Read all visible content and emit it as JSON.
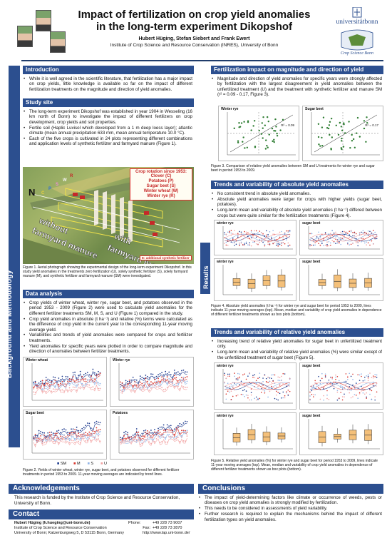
{
  "header": {
    "title_line1": "Impact of fertilization on crop yield anomalies",
    "title_line2": "in the long-term experiment Dikopshof",
    "authors": "Hubert Hüging, Stefan Siebert and Frank Ewert",
    "institute": "Institute of Crop Science and Resource Conservation (INRES), University of Bonn",
    "logo_text": "universitätbonn",
    "logo_sub": "Crop Science Bonn"
  },
  "side_label": "Background and Methodology",
  "results_label": "Results",
  "introduction": {
    "heading": "Introduction",
    "bullets": [
      "While it is well agreed in the scientific literature, that fertilization has a major impact on crop yields, little knowledge is available so far on the impact of different fertilization treatments on the magnitude and direction of yield anomalies."
    ]
  },
  "study_site": {
    "heading": "Study site",
    "bullets": [
      "The long-term experiment Dikopshof was established in year 1904 in Wesseling (16 km north of Bonn) to investigate the impact of different fertilizers on crop development, crop yields and soil properties.",
      "Fertile soil (Haplic Luvisol which developed from a 1 m deep loess layer); atlantic climate (mean annual precipitation 633 mm, mean annual temperature 10.0 °C).",
      "Each of the five crops is cultivated in 24 plots representing different combinations and application levels of synthetic fertilizer and farmyard manure (Figure 1)."
    ],
    "rotation_title": "Crop rotation since 1953:",
    "rotation": [
      "Clover (C)",
      "Potatoes (P)",
      "Sugar beet (S)",
      "Winter wheat (W)",
      "Winter rye (R)"
    ],
    "map_labels": {
      "north": "N",
      "without_1": "without",
      "without_2": "farmyard manure",
      "with_1": "with",
      "with_2": "farmyard manure",
      "legend": "E: additional synthetic fertilizer",
      "strip_letters": [
        "R",
        "W",
        "S",
        "P",
        "C"
      ]
    },
    "figure1_caption": "Figure 1. Aerial photograph showing the experimental design of the long-term experiment Dikopshof. In this study yield anomalies in the treatments zero fertilization (U), solely synthetic fertilizer (S), solely farmyard manure (M), and synthetic fertilizer and farmyard manure (SM) were investigated."
  },
  "data_analysis": {
    "heading": "Data analysis",
    "bullets": [
      "Crop yields of winter wheat, winter rye, sugar beet, and potatoes observed in the period 1953 - 2009 (Figure 2) were used to calculate yield anomalies for the different fertilizer treatments SM, M, S, and U (Figure 1) compared in the study.",
      "Crop yield anomalies in absolute (t ha⁻¹) and relative (%) terms were calculated as the difference of crop yield in the current year to the corresponding 11-year moving average yield.",
      "Variabilities and trends of yield anomalies were compared for crops and fertilizer treatments.",
      "Yield anomalies for specific years were plotted in order to compare magnitude and direction of anomalies between fertilizer treatments."
    ],
    "panels": [
      "Winter wheat",
      "Winter rye",
      "Sugar beet",
      "Potatoes"
    ],
    "legend": [
      "SM",
      "M",
      "S",
      "U"
    ],
    "figure2_caption": "Figure 2. Yields of winter wheat, winter rye, sugar beet, and potatoes observed for different fertilizer treatments in period 1953 to 2009. 11-year moving averages are indicated by trend lines."
  },
  "fert_impact": {
    "heading": "Fertilization impact on magnitude and direction of yield anomalies",
    "bullets": [
      "Magnitude and direction of yield anomalies for specific years were strongly affected by fertilization with the largest disagreement in yield anomalies between the unfertilized treatment (U) and the treatment with synthetic fertilizer and manure SM (r² = 0.09 - 0.17, Figure 3)."
    ],
    "panels": [
      "Winter rye",
      "Sugar beet"
    ],
    "r2": [
      "R² = 0.09",
      "R² = 0.17"
    ],
    "figure3_caption": "Figure 3. Comparison of relative yield anomalies between SM and U treatments for winter rye and sugar beet in period 1953 to 2009."
  },
  "abs_trends": {
    "heading": "Trends and variability of absolute yield anomalies",
    "bullets": [
      "No consistent trend in absolute yield anomalies.",
      "Absolute yield anomalies were larger for crops with higher yields (sugar beet, potatoes).",
      "Long-term mean and variability of absolute yield anomalies (t ha⁻¹) differed between crops but were quite similar for the fertilization treatments (Figure 4)."
    ],
    "panels": [
      "winter rye",
      "sugar beet",
      "winter rye",
      "sugar beet"
    ],
    "figure4_caption": "Figure 4. Absolute yield anomalies (t ha⁻¹) for winter rye and sugar beet for period 1953 to 2009, lines indicate 11-year moving averages (top). Mean, median and variability of crop yield anomalies in dependence of different fertilizer treatments shown as box plots (bottom)."
  },
  "rel_trends": {
    "heading": "Trends and variability of relative yield anomalies",
    "bullets": [
      "Increasing trend of relative yield anomalies for sugar beet in unfertilized treatment only.",
      "Long-term mean and variability of relative yield anomalies (%) were similar except of the unfertilized treatment of sugar beet (Figure 5)."
    ],
    "panels": [
      "winter rye",
      "sugar beet",
      "winter rye",
      "sugar beet"
    ],
    "figure5_caption": "Figure 5. Relative yield anomalies (%) for winter rye and sugar beet for period 1953 to 2009, lines indicate 11-year moving averages (top). Mean, median and variability of crop yield anomalies in dependence of different fertilizer treatments shown as box plots (bottom)."
  },
  "acknowledgements": {
    "heading": "Acknowledgements",
    "text": "This research is funded by the Institute of Crop Science and Resource Conservation, University of Bonn."
  },
  "contact": {
    "heading": "Contact",
    "name": "Hubert Hüging (h.hueging@uni-bonn.de)",
    "inst": "Institute of Crop Science and Resource Conservation",
    "addr": "University of Bonn; Katzenburgweg 5, D 53115 Bonn, Germany",
    "phone_label": "Phone:",
    "phone": "+49 228 73 9007",
    "fax_label": "Fax:",
    "fax": "+49 228 73 2870",
    "web": "http://www.lap.uni-bonn.de/"
  },
  "conclusions": {
    "heading": "Conclusions",
    "bullets": [
      "The impact of yield-determining factors like climate or occurrence of weeds, pests or diseases on crop yield anomalies is strongly modified by fertilization.",
      "This needs to be considered in assessments of yield variability.",
      "Further research is required to explain the mechanisms behind the impact of different fertilization types on yield anomalies."
    ]
  },
  "colors": {
    "accent": "#2c4f8f",
    "SM": "#1f3c8f",
    "M": "#d9342b",
    "S": "#8fb3e6",
    "U": "#f2a3a3"
  }
}
